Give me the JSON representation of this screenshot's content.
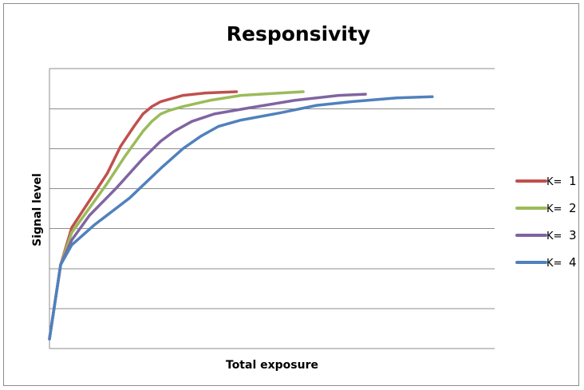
{
  "chart_data": {
    "type": "line",
    "title": "Responsivity",
    "xlabel": "Total exposure",
    "ylabel": "Signal level",
    "xlim": [
      0,
      100
    ],
    "ylim": [
      0,
      100
    ],
    "grid": true,
    "legend_position": "right",
    "series": [
      {
        "prefix": "K=",
        "number": "1",
        "color": "#c0504d",
        "x": [
          0,
          2.5,
          5,
          9,
          13,
          16,
          19,
          21,
          23,
          25,
          30,
          35,
          42
        ],
        "y": [
          0,
          30,
          45,
          56,
          67,
          78,
          86,
          91,
          94,
          96,
          98.5,
          99.5,
          100
        ]
      },
      {
        "prefix": "K=",
        "number": "2",
        "color": "#9bbb59",
        "x": [
          0,
          2.5,
          5,
          9,
          13,
          17,
          21,
          23,
          25,
          27,
          30,
          36,
          43,
          50,
          57
        ],
        "y": [
          0,
          30,
          43,
          53,
          63,
          74,
          84,
          88,
          91,
          92.5,
          94,
          96.5,
          98.5,
          99.3,
          100
        ]
      },
      {
        "prefix": "K=",
        "number": "3",
        "color": "#8064a2",
        "x": [
          0,
          2.5,
          5,
          9,
          15,
          21,
          25,
          28,
          32,
          37,
          45,
          55,
          65,
          71
        ],
        "y": [
          0,
          30,
          40,
          50,
          61,
          73,
          80,
          84,
          88,
          91,
          93.5,
          96.5,
          98.5,
          99
        ]
      },
      {
        "prefix": "K=",
        "number": "4",
        "color": "#4f81bd",
        "x": [
          0,
          2.5,
          5,
          10,
          18,
          25,
          30,
          34,
          38,
          43,
          52,
          60,
          68,
          78,
          86
        ],
        "y": [
          0,
          30,
          38,
          46,
          57,
          69,
          77,
          82,
          86,
          88.5,
          91.5,
          94.5,
          96,
          97.5,
          98
        ]
      }
    ]
  }
}
